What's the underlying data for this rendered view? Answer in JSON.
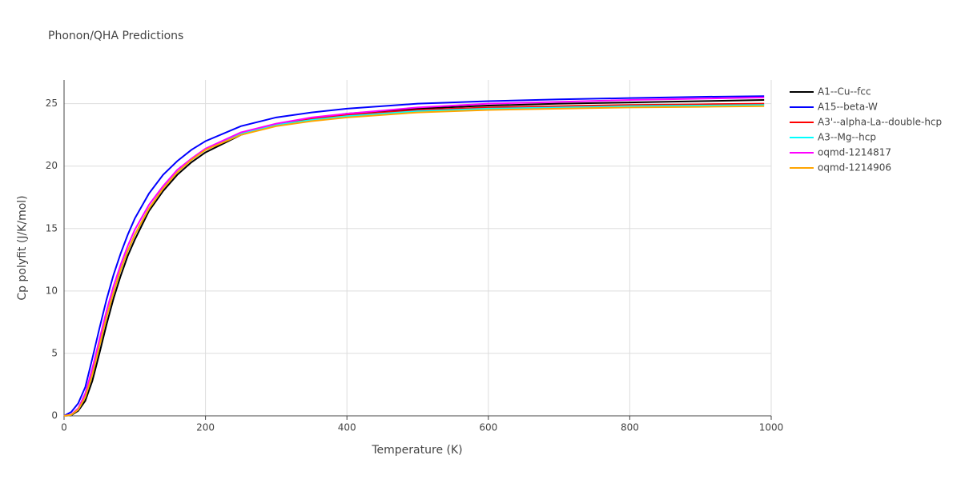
{
  "chart_data": {
    "type": "line",
    "title": "Phonon/QHA Predictions",
    "x_label": "Temperature (K)",
    "y_label": "Cp polyfit (J/K/mol)",
    "x": [
      0,
      10,
      20,
      30,
      40,
      50,
      60,
      70,
      80,
      90,
      100,
      120,
      140,
      160,
      180,
      200,
      250,
      300,
      350,
      400,
      500,
      600,
      700,
      800,
      900,
      990
    ],
    "series": [
      {
        "name": "A1--Cu--fcc",
        "color": "#000000",
        "values": [
          0,
          0.05,
          0.4,
          1.2,
          2.8,
          5.0,
          7.3,
          9.4,
          11.2,
          12.8,
          14.1,
          16.4,
          18.0,
          19.3,
          20.3,
          21.1,
          22.5,
          23.3,
          23.8,
          24.2,
          24.6,
          24.85,
          25.0,
          25.1,
          25.2,
          25.3
        ]
      },
      {
        "name": "A15--beta-W",
        "color": "#0000ff",
        "values": [
          0,
          0.3,
          1.0,
          2.3,
          4.6,
          7.0,
          9.3,
          11.3,
          13.0,
          14.5,
          15.8,
          17.8,
          19.3,
          20.4,
          21.3,
          22.0,
          23.2,
          23.9,
          24.3,
          24.6,
          25.0,
          25.2,
          25.35,
          25.45,
          25.55,
          25.6
        ]
      },
      {
        "name": "A3'--alpha-La--double-hcp",
        "color": "#ff0000",
        "values": [
          0,
          0.08,
          0.5,
          1.5,
          3.3,
          5.6,
          7.9,
          9.9,
          11.7,
          13.2,
          14.5,
          16.6,
          18.2,
          19.5,
          20.5,
          21.3,
          22.6,
          23.3,
          23.8,
          24.1,
          24.5,
          24.7,
          24.8,
          24.9,
          24.95,
          25.0
        ]
      },
      {
        "name": "A3--Mg--hcp",
        "color": "#00ffff",
        "values": [
          0,
          0.08,
          0.5,
          1.5,
          3.3,
          5.6,
          7.9,
          9.9,
          11.7,
          13.2,
          14.5,
          16.6,
          18.2,
          19.5,
          20.5,
          21.3,
          22.6,
          23.3,
          23.7,
          24.0,
          24.4,
          24.6,
          24.7,
          24.8,
          24.85,
          24.9
        ]
      },
      {
        "name": "oqmd-1214817",
        "color": "#ff00ff",
        "values": [
          0,
          0.1,
          0.6,
          1.8,
          3.8,
          6.1,
          8.4,
          10.4,
          12.1,
          13.6,
          14.9,
          16.9,
          18.4,
          19.7,
          20.6,
          21.4,
          22.7,
          23.4,
          23.9,
          24.2,
          24.7,
          25.0,
          25.15,
          25.3,
          25.4,
          25.5
        ]
      },
      {
        "name": "oqmd-1214906",
        "color": "#ffa500",
        "values": [
          0,
          0.08,
          0.5,
          1.5,
          3.3,
          5.6,
          7.9,
          9.9,
          11.7,
          13.2,
          14.5,
          16.6,
          18.2,
          19.5,
          20.5,
          21.3,
          22.5,
          23.2,
          23.6,
          23.9,
          24.3,
          24.5,
          24.6,
          24.7,
          24.75,
          24.8
        ]
      }
    ],
    "xlim": [
      0,
      1000
    ],
    "xticks": [
      0,
      200,
      400,
      600,
      800,
      1000
    ],
    "ylim": [
      0,
      26.9
    ],
    "yticks": [
      0,
      5,
      10,
      15,
      20,
      25
    ],
    "grid": true
  }
}
